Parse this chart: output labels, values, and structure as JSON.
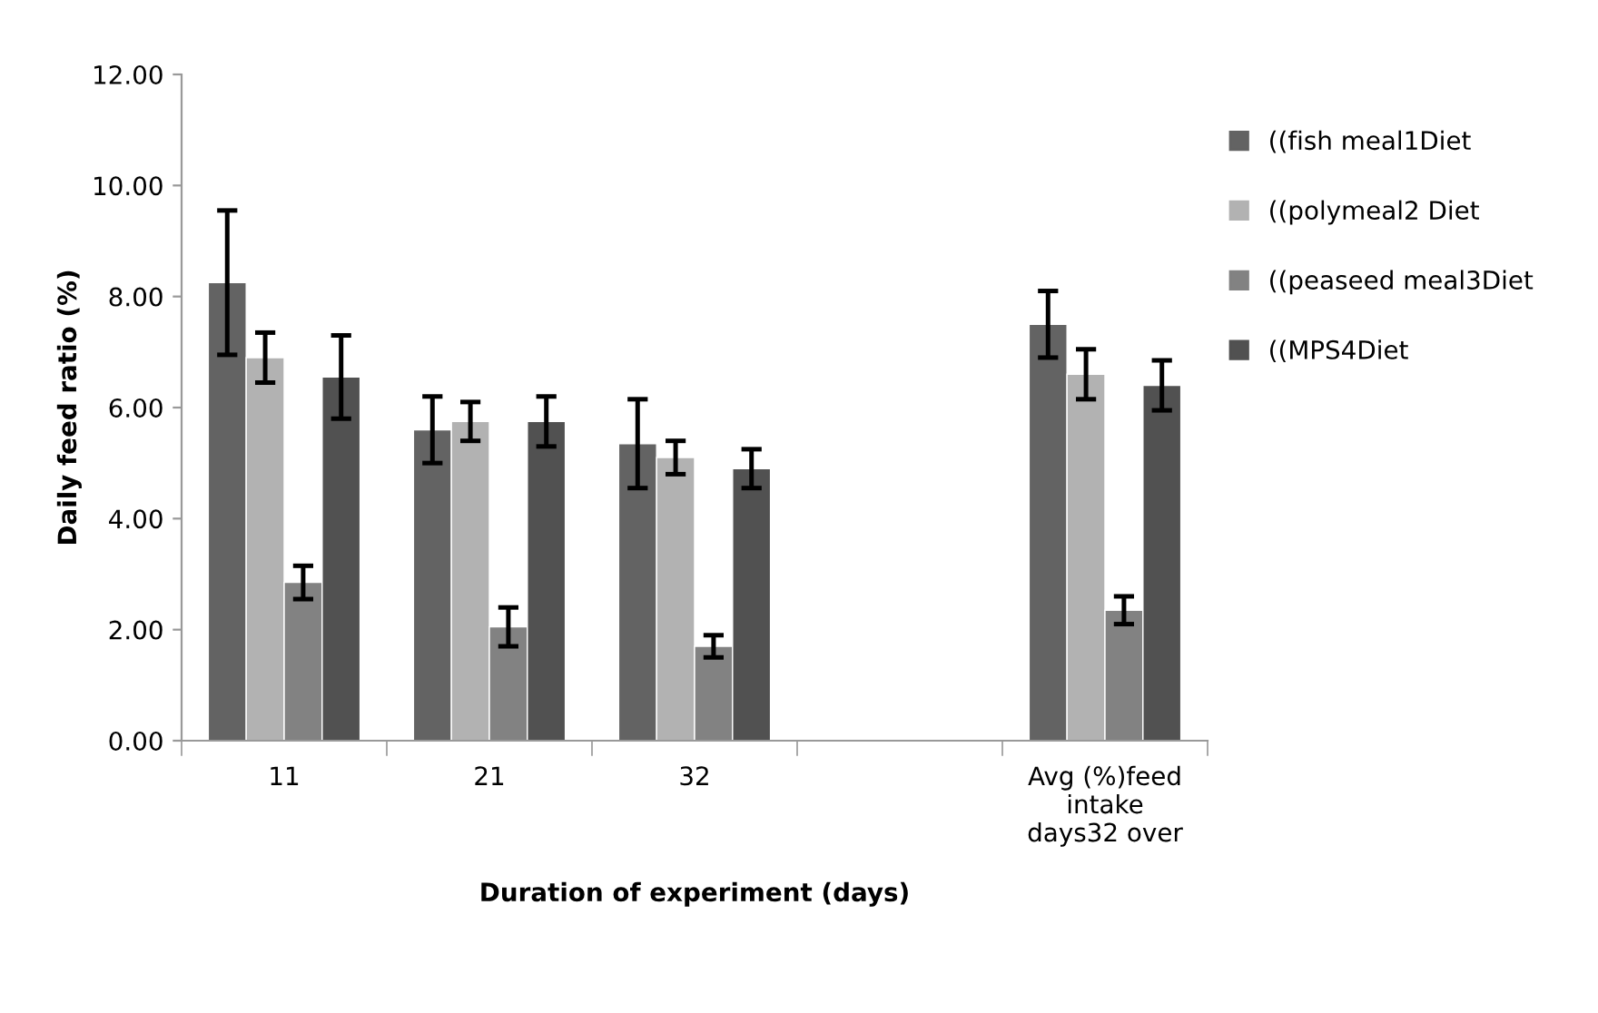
{
  "chart_data": {
    "type": "bar",
    "xlabel": "Duration of experiment (days)",
    "ylabel": "Daily feed ratio (%)",
    "categories": [
      "11",
      "21",
      "32",
      null,
      "Avg (%)feed\nintake\ndays32 over"
    ],
    "series": [
      {
        "name": "((fish meal1Diet",
        "color": "#636363",
        "values": [
          8.25,
          5.6,
          5.35,
          null,
          7.5
        ],
        "errors": [
          1.3,
          0.6,
          0.8,
          null,
          0.6
        ]
      },
      {
        "name": "((polymeal2 Diet",
        "color": "#b2b2b2",
        "values": [
          6.9,
          5.75,
          5.1,
          null,
          6.6
        ],
        "errors": [
          0.45,
          0.35,
          0.3,
          null,
          0.45
        ]
      },
      {
        "name": "((peaseed meal3Diet",
        "color": "#828282",
        "values": [
          2.85,
          2.05,
          1.7,
          null,
          2.35
        ],
        "errors": [
          0.3,
          0.35,
          0.2,
          null,
          0.25
        ]
      },
      {
        "name": "((MPS4Diet",
        "color": "#515151",
        "values": [
          6.55,
          5.75,
          4.9,
          null,
          6.4
        ],
        "errors": [
          0.75,
          0.45,
          0.35,
          null,
          0.45
        ]
      }
    ],
    "ylim": [
      0,
      12
    ],
    "yticks": [
      {
        "value": 0,
        "label": "0.00"
      },
      {
        "value": 2,
        "label": "2.00"
      },
      {
        "value": 4,
        "label": "4.00"
      },
      {
        "value": 6,
        "label": "6.00"
      },
      {
        "value": 8,
        "label": "8.00"
      },
      {
        "value": 10,
        "label": "10.00"
      },
      {
        "value": 12,
        "label": "12.00"
      }
    ],
    "grid": false,
    "legend": "right"
  }
}
